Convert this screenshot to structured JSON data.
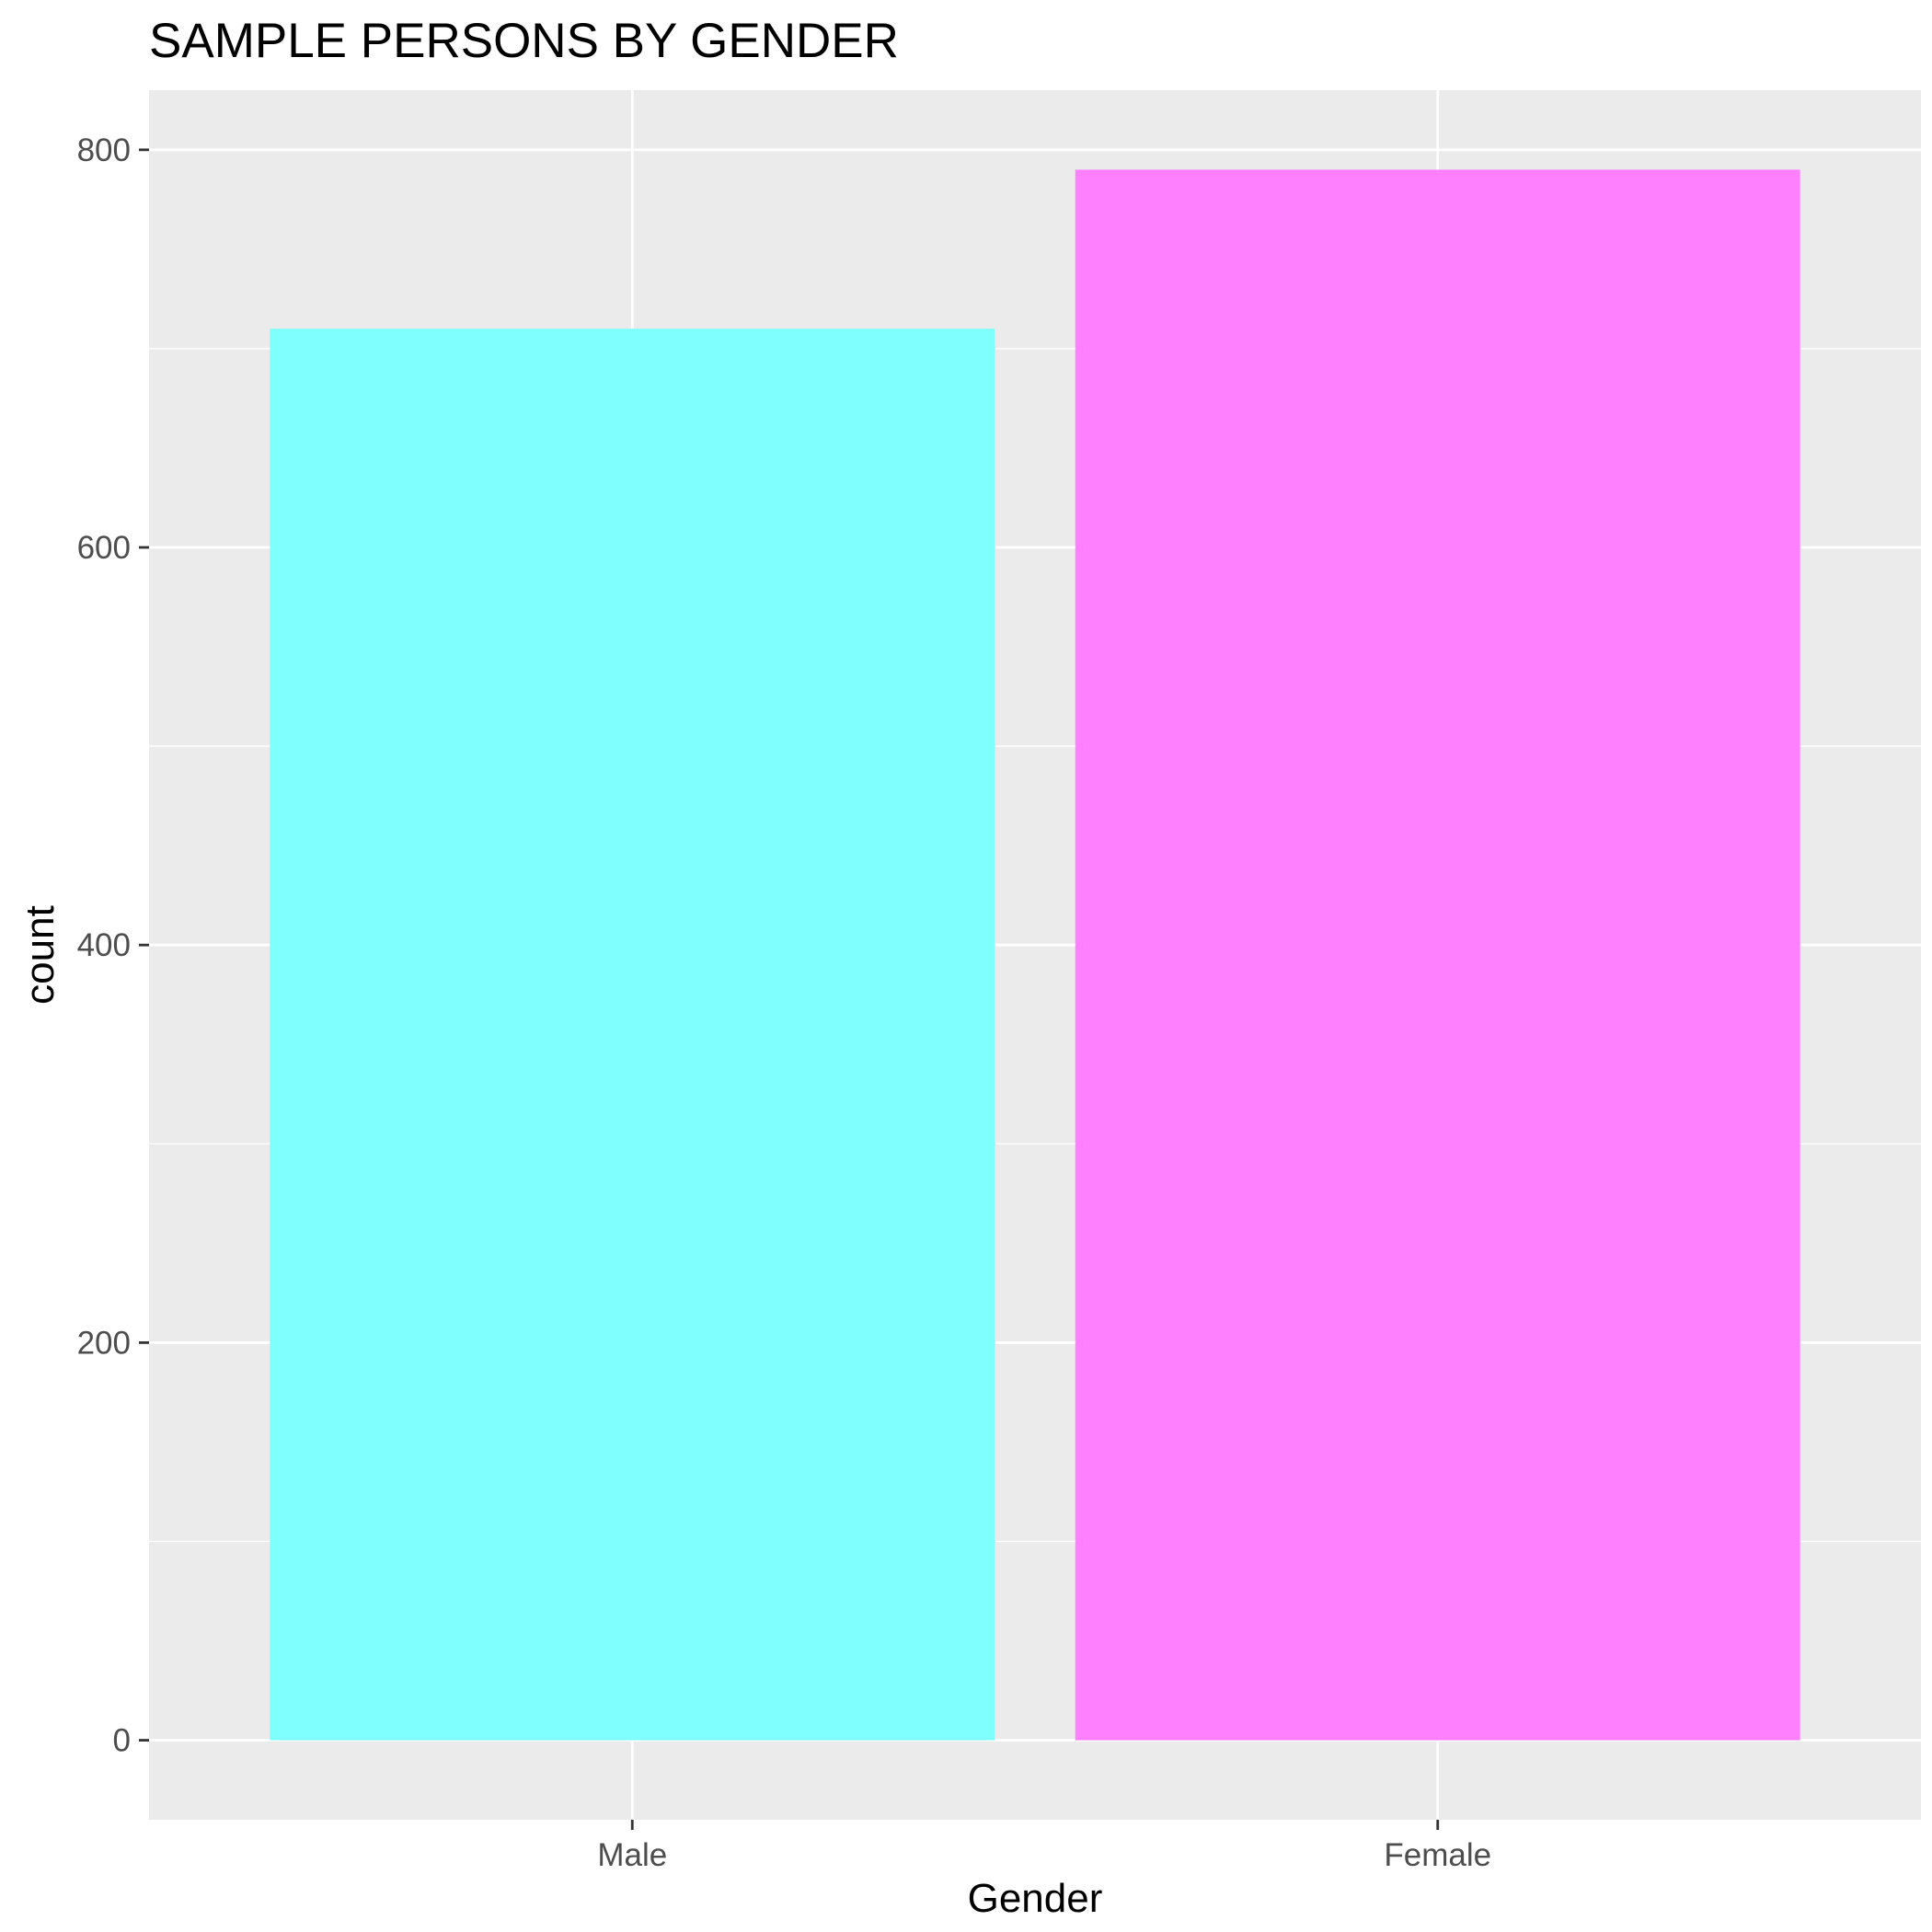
{
  "chart_data": {
    "type": "bar",
    "title": "SAMPLE PERSONS BY GENDER",
    "xlabel": "Gender",
    "ylabel": "count",
    "categories": [
      "Male",
      "Female"
    ],
    "values": [
      710,
      790
    ],
    "colors": [
      "#80ffff",
      "#ff80ff"
    ],
    "ylim": [
      -40,
      830
    ],
    "yticks": [
      0,
      200,
      400,
      600,
      800
    ],
    "yticks_minor": [
      100,
      300,
      500,
      700
    ],
    "ytick_labels": [
      "0",
      "200",
      "400",
      "600",
      "800"
    ],
    "grid": true,
    "legend": "none",
    "panel_background": "#ebebeb",
    "gridline_color": "#ffffff"
  }
}
